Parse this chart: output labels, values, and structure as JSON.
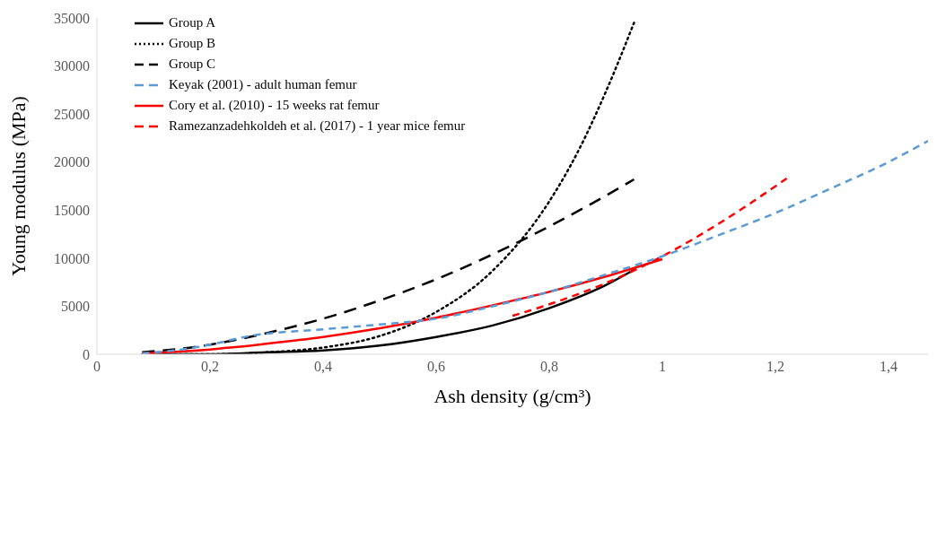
{
  "chart_data": {
    "type": "line",
    "xlabel": "Ash density (g/cm³)",
    "ylabel": "Young modulus (MPa)",
    "xlim": [
      0,
      1.47
    ],
    "xticks": [
      0,
      {
        "value": 0.2,
        "label": "0,2"
      },
      {
        "value": 0.4,
        "label": "0,4"
      },
      {
        "value": 0.6,
        "label": "0,6"
      },
      {
        "value": 0.8,
        "label": "0,8"
      },
      1,
      {
        "value": 1.2,
        "label": "1,2"
      },
      {
        "value": 1.4,
        "label": "1,4"
      }
    ],
    "ylim": [
      0,
      35000
    ],
    "yticks": [
      0,
      5000,
      10000,
      15000,
      20000,
      25000,
      30000,
      35000
    ],
    "grid": false,
    "legend": "top left",
    "marker": "none",
    "series": [
      {
        "name": "Group A",
        "color": "#000000",
        "line_style": "solid",
        "x": [
          0.08,
          0.2,
          0.3,
          0.4,
          0.5,
          0.6,
          0.7,
          0.8,
          0.9,
          0.95
        ],
        "values": [
          0,
          0,
          200,
          400,
          900,
          1800,
          3000,
          4800,
          7200,
          8800
        ]
      },
      {
        "name": "Group B",
        "color": "#000000",
        "line_style": "dotted",
        "x": [
          0.08,
          0.2,
          0.3,
          0.4,
          0.5,
          0.6,
          0.7,
          0.8,
          0.85,
          0.9,
          0.95
        ],
        "values": [
          0,
          0,
          200,
          700,
          1900,
          4400,
          8700,
          15900,
          21000,
          27300,
          34500
        ]
      },
      {
        "name": "Group C",
        "color": "#000000",
        "line_style": "dashed",
        "x": [
          0.08,
          0.2,
          0.3,
          0.4,
          0.5,
          0.6,
          0.7,
          0.8,
          0.9,
          0.95
        ],
        "values": [
          200,
          1000,
          2200,
          3700,
          5600,
          7800,
          10400,
          13300,
          16500,
          18200
        ]
      },
      {
        "name": "Keyak (2001) - adult human femur",
        "color": "#5b9bd5",
        "line_style": "dashed",
        "x": [
          0.08,
          0.15,
          0.2,
          0.27,
          0.4,
          0.5,
          0.6,
          0.7,
          0.8,
          0.9,
          1,
          1.1,
          1.2,
          1.3,
          1.4,
          1.47
        ],
        "values": [
          100,
          500,
          1000,
          1900,
          2600,
          3100,
          3700,
          5000,
          6500,
          8300,
          10200,
          12400,
          14700,
          17300,
          20000,
          22200
        ]
      },
      {
        "name": "Cory et al. (2010) - 15 weeks rat femur",
        "color": "#ff0000",
        "line_style": "solid",
        "x": [
          0.08,
          0.2,
          0.3,
          0.4,
          0.5,
          0.6,
          0.7,
          0.8,
          0.9,
          1.0
        ],
        "values": [
          100,
          500,
          1100,
          1800,
          2700,
          3800,
          5100,
          6500,
          8100,
          9900
        ]
      },
      {
        "name": "Ramezanzadehkoldeh et al. (2017) - 1 year mice femur",
        "color": "#ff0000",
        "line_style": "dashed",
        "x": [
          0.735,
          0.8,
          0.9,
          1.0,
          1.1,
          1.22
        ],
        "values": [
          4000,
          5200,
          7400,
          10200,
          13600,
          18300
        ]
      }
    ]
  }
}
